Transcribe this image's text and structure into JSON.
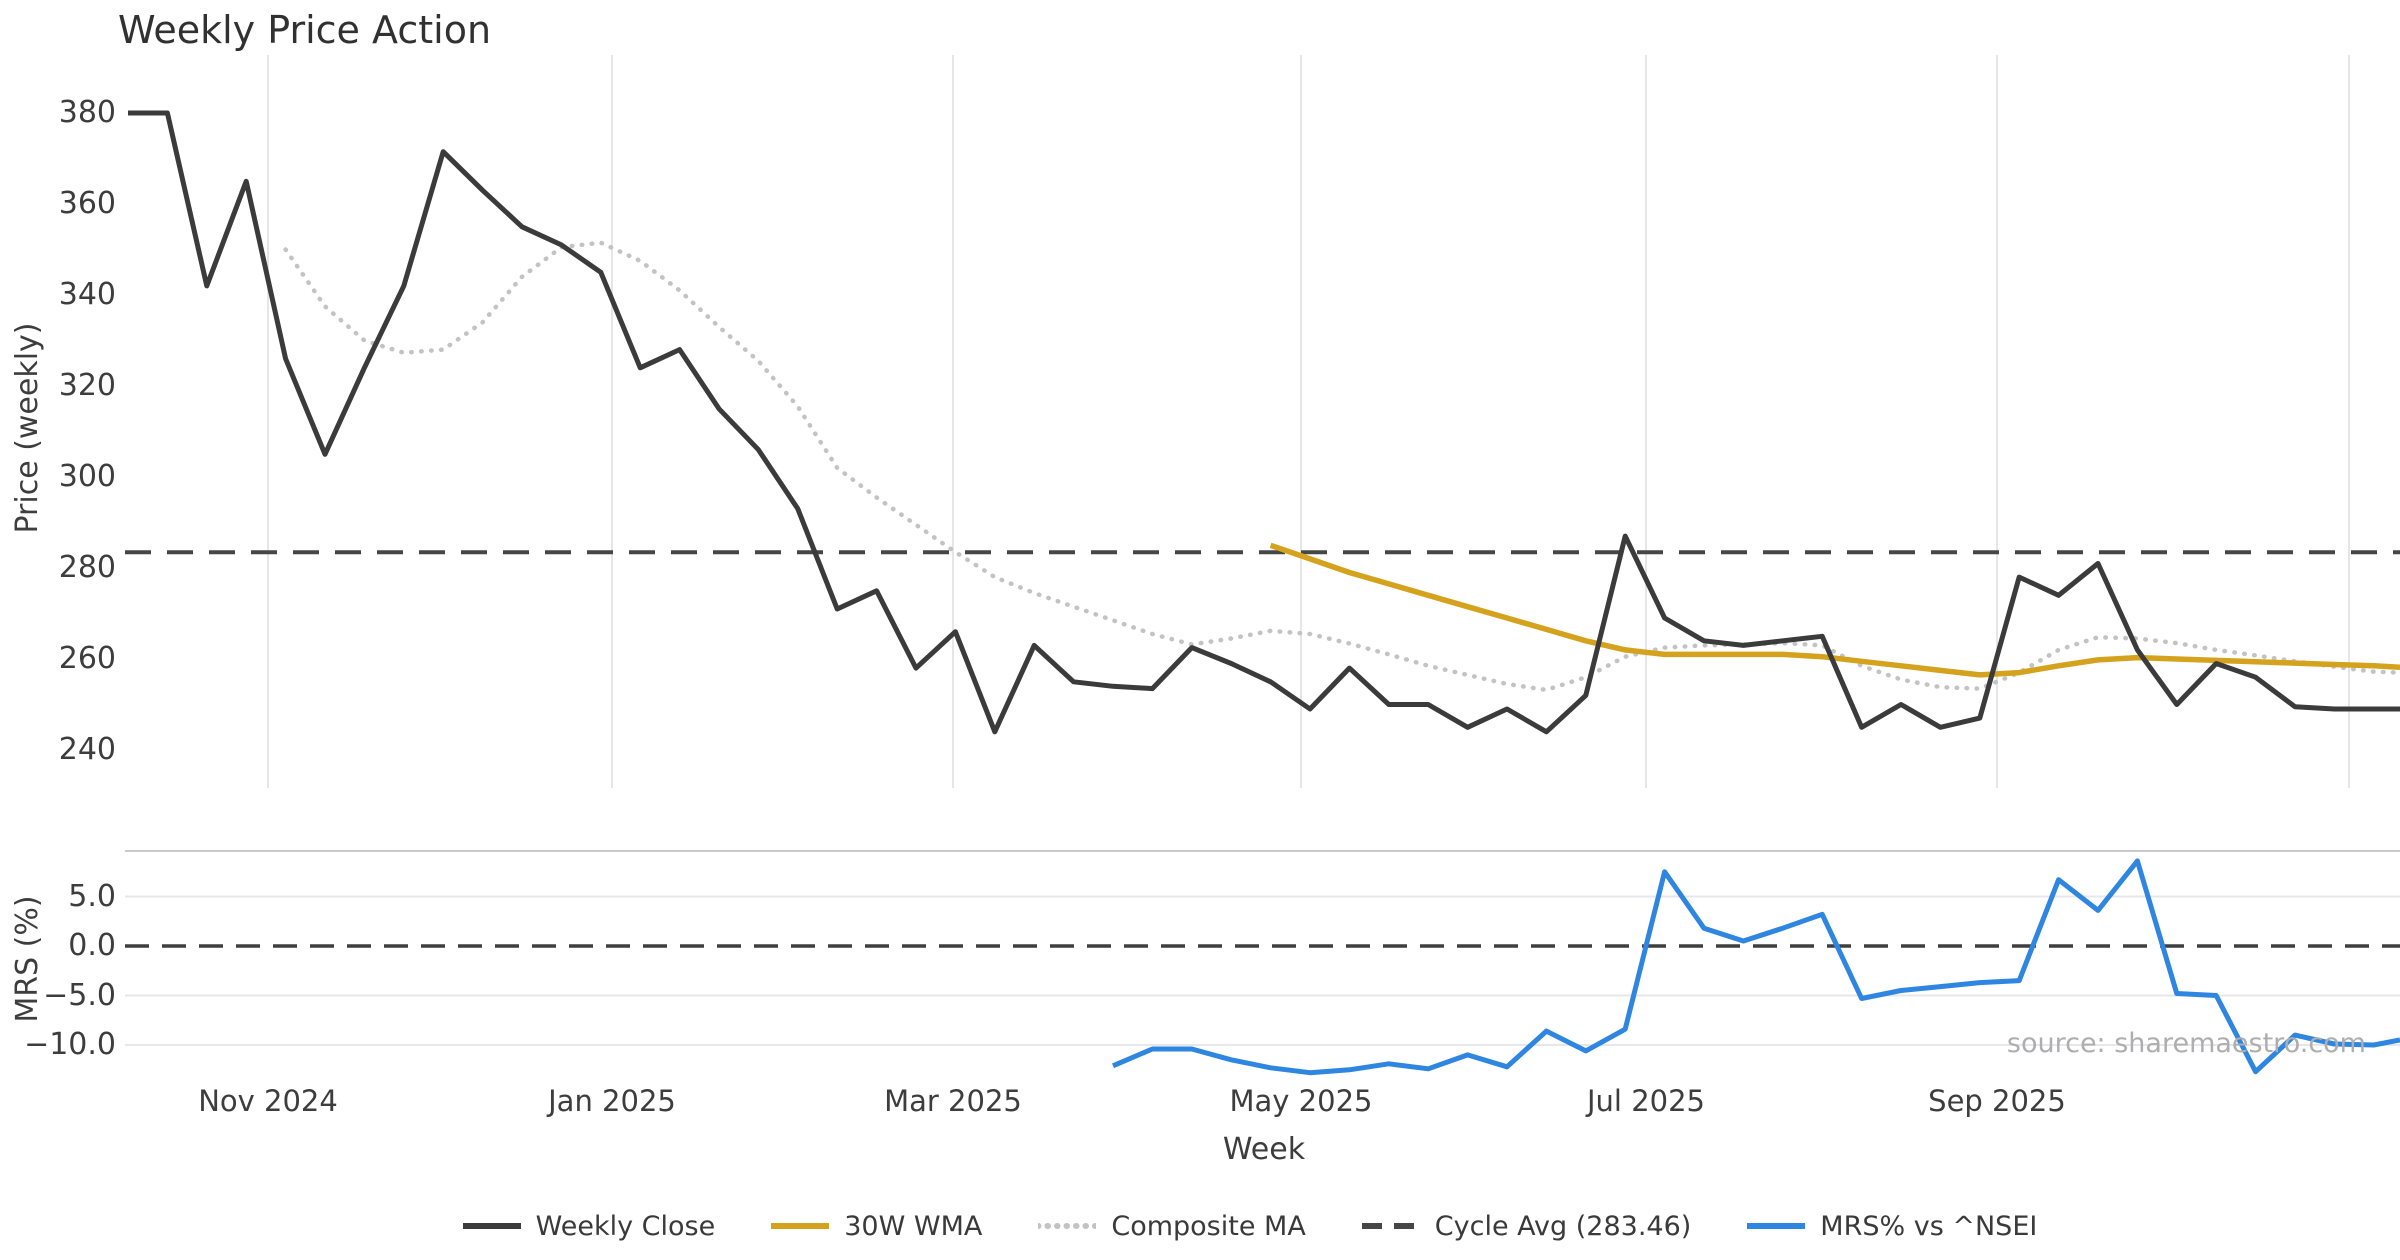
{
  "title": "Weekly Price Action",
  "source_watermark": "source: sharemaestro.com",
  "legend": {
    "items": [
      {
        "label": "Weekly Close",
        "style": "solid",
        "color": "#3b3b3b"
      },
      {
        "label": "30W WMA",
        "style": "solid",
        "color": "#d4a21c"
      },
      {
        "label": "Composite MA",
        "style": "dotted",
        "color": "#c3c3c3"
      },
      {
        "label": "Cycle Avg (283.46)",
        "style": "dashed",
        "color": "#464646"
      },
      {
        "label": "MRS% vs ^NSEI",
        "style": "solid",
        "color": "#2e86e1"
      }
    ]
  },
  "chart_data": {
    "type": "line",
    "xlabel": "Week",
    "x_unit": "weekly points, Oct 2024 - Nov 2025",
    "n_points": 59,
    "x_tick_labels": [
      "Nov 2024",
      "Jan 2025",
      "Mar 2025",
      "May 2025",
      "Jul 2025",
      "Sep 2025"
    ],
    "grid": "on",
    "legend_position": "bottom-center",
    "panels": [
      {
        "ylabel": "Price (weekly)",
        "y_ticks": [
          380,
          360,
          340,
          320,
          300,
          280,
          260,
          240
        ],
        "y_tick_labels": [
          "380",
          "360",
          "340",
          "320",
          "300",
          "280",
          "260",
          "240"
        ],
        "ylim": [
          232,
          393
        ],
        "gridlines": "vertical-months",
        "cycle_avg": 283.46,
        "series": [
          {
            "name": "Weekly Close",
            "color": "#3b3b3b",
            "style": "solid",
            "width": 5,
            "values": [
              380,
              380,
              342,
              365,
              326,
              305,
              324,
              342,
              371.5,
              363,
              355,
              351,
              345,
              324,
              328,
              315,
              306,
              293,
              271,
              275,
              258,
              266,
              244,
              263,
              255,
              254,
              253.5,
              262.5,
              259,
              255,
              249,
              258,
              250,
              250,
              245,
              249,
              244,
              252,
              287,
              269,
              264,
              263,
              264,
              265,
              245,
              250,
              245,
              247,
              278,
              274,
              281,
              262,
              250,
              259,
              256,
              249.5,
              249,
              249,
              249
            ]
          },
          {
            "name": "30W WMA",
            "color": "#d4a21c",
            "style": "solid",
            "width": 5.5,
            "values": [
              null,
              null,
              null,
              null,
              null,
              null,
              null,
              null,
              null,
              null,
              null,
              null,
              null,
              null,
              null,
              null,
              null,
              null,
              null,
              null,
              null,
              null,
              null,
              null,
              null,
              null,
              null,
              null,
              null,
              285,
              282,
              279,
              276.5,
              274,
              271.5,
              269,
              266.5,
              264,
              262,
              261,
              261,
              261,
              261,
              260.5,
              259.5,
              258.5,
              257.5,
              256.5,
              257,
              258.5,
              259.8,
              260.3,
              260,
              259.7,
              259.4,
              259.1,
              258.8,
              258.5,
              258.2
            ]
          },
          {
            "name": "Composite MA",
            "color": "#c3c3c3",
            "style": "dotted",
            "width": 4.5,
            "values": [
              null,
              null,
              null,
              null,
              350,
              337.5,
              330,
              327.3,
              328,
              334,
              344,
              350.5,
              351.5,
              347.5,
              341,
              333,
              325.5,
              315.5,
              302,
              295.5,
              289.5,
              283.5,
              278,
              274.5,
              271.5,
              268.5,
              265.5,
              263.2,
              264.5,
              266.2,
              265.5,
              263.4,
              261,
              258.5,
              256.5,
              254.5,
              253.2,
              256,
              260.5,
              262.5,
              263,
              263.2,
              263.5,
              263,
              258.5,
              255.5,
              253.8,
              253.5,
              257,
              262,
              264.8,
              264.5,
              263.5,
              262,
              260.8,
              259.5,
              258.3,
              257.2,
              257
            ]
          },
          {
            "name": "Cycle Avg (283.46)",
            "color": "#464646",
            "style": "dashed",
            "width": 4,
            "constant": 283.46
          }
        ]
      },
      {
        "ylabel": "MRS (%)",
        "y_ticks": [
          5,
          0,
          -5,
          -10
        ],
        "y_tick_labels": [
          "5.0",
          "0.0",
          "−5.0",
          "−10.0"
        ],
        "ylim": [
          -13.5,
          9.6
        ],
        "gridlines": "horizontal",
        "zero_line": 0,
        "series": [
          {
            "name": "MRS% vs ^NSEI",
            "color": "#2e86e1",
            "style": "solid",
            "width": 5,
            "values": [
              null,
              null,
              null,
              null,
              null,
              null,
              null,
              null,
              null,
              null,
              null,
              null,
              null,
              null,
              null,
              null,
              null,
              null,
              null,
              null,
              null,
              null,
              null,
              null,
              null,
              -12.1,
              -10.4,
              -10.4,
              -11.5,
              -12.3,
              -12.8,
              -12.5,
              -11.9,
              -12.4,
              -11.0,
              -12.2,
              -8.6,
              -10.6,
              -8.4,
              7.5,
              1.8,
              0.5,
              1.8,
              3.2,
              -5.3,
              -4.5,
              -4.1,
              -3.7,
              -3.5,
              6.7,
              3.6,
              8.6,
              -4.8,
              -5.0,
              -12.7,
              -9.0,
              -9.9,
              -10.0,
              -9.5
            ]
          }
        ]
      }
    ]
  }
}
